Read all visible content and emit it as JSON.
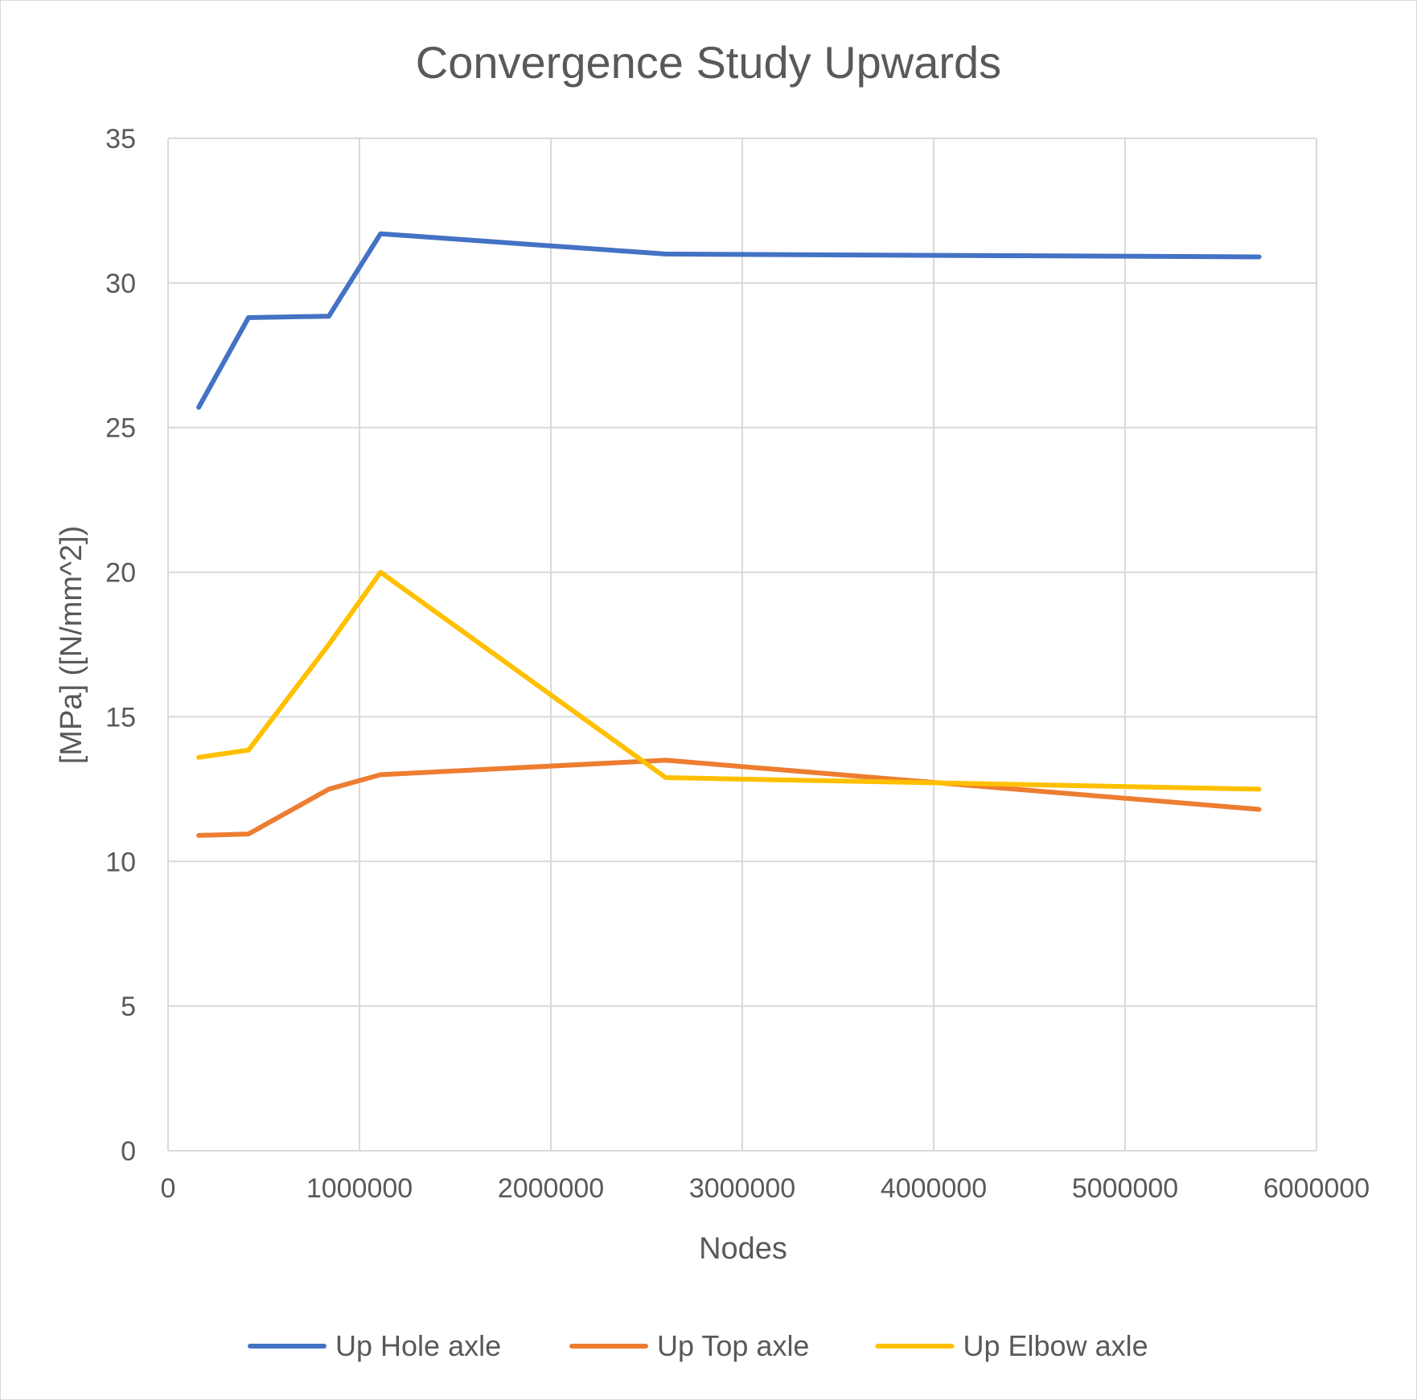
{
  "chart_data": {
    "type": "line",
    "title": "Convergence Study Upwards",
    "xlabel": "Nodes",
    "ylabel": "[MPa]  ([N/mm^2])",
    "xlim": [
      0,
      6000000
    ],
    "ylim": [
      0,
      35
    ],
    "x_ticks": [
      "0",
      "1000000",
      "2000000",
      "3000000",
      "4000000",
      "5000000",
      "6000000"
    ],
    "y_ticks": [
      "0",
      "5",
      "10",
      "15",
      "20",
      "25",
      "30",
      "35"
    ],
    "grid": true,
    "legend_position": "bottom",
    "series": [
      {
        "name": "Up Hole axle",
        "color": "#4472C4",
        "points": [
          [
            160000,
            25.7
          ],
          [
            420000,
            28.8
          ],
          [
            840000,
            28.85
          ],
          [
            1110000,
            31.7
          ],
          [
            2600000,
            31.0
          ],
          [
            5700000,
            30.9
          ]
        ]
      },
      {
        "name": "Up Top axle",
        "color": "#ED7D31",
        "points": [
          [
            160000,
            10.9
          ],
          [
            420000,
            10.95
          ],
          [
            840000,
            12.5
          ],
          [
            1110000,
            13.0
          ],
          [
            2600000,
            13.5
          ],
          [
            5700000,
            11.8
          ]
        ]
      },
      {
        "name": "Up Elbow axle",
        "color": "#FFC000",
        "points": [
          [
            160000,
            13.6
          ],
          [
            420000,
            13.85
          ],
          [
            840000,
            17.5
          ],
          [
            1110000,
            20.0
          ],
          [
            2600000,
            12.9
          ],
          [
            5700000,
            12.5
          ]
        ]
      }
    ]
  }
}
